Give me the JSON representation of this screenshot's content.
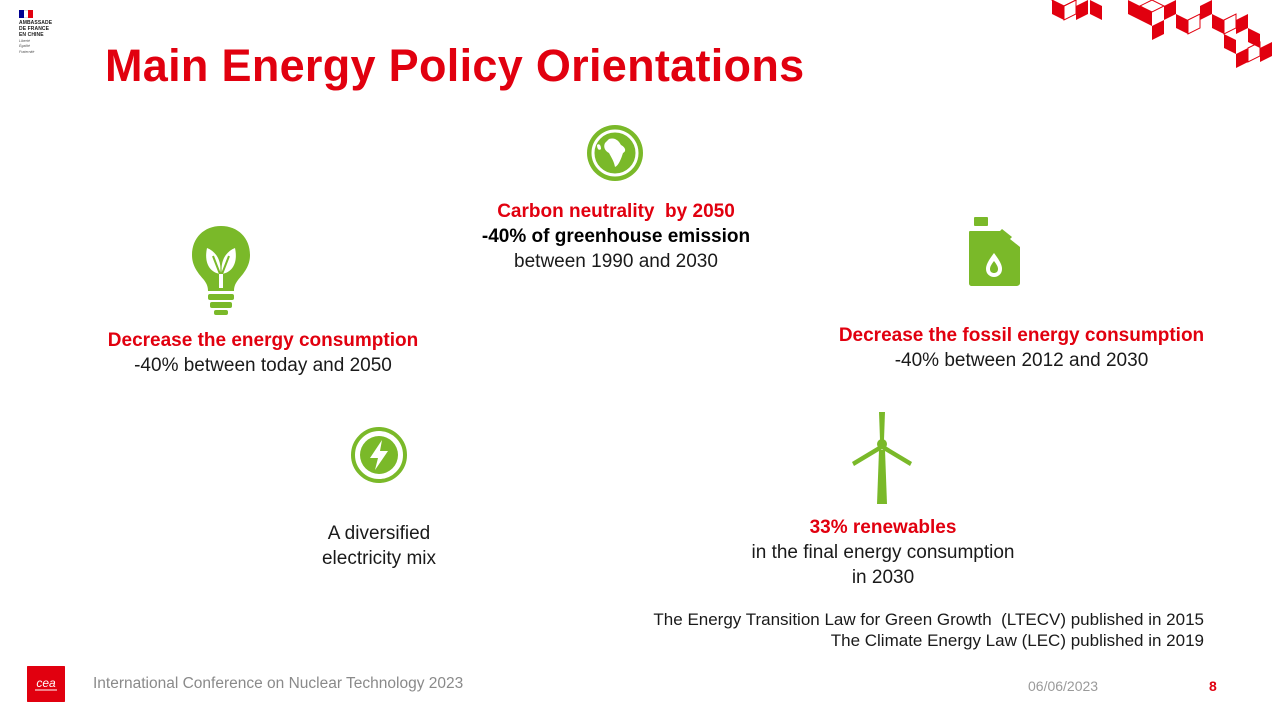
{
  "colors": {
    "accent": "#e1000f",
    "icon_green": "#7ab929"
  },
  "embassy": {
    "lines": [
      "AMBASSADE",
      "DE FRANCE",
      "EN CHINE"
    ],
    "motto": [
      "Liberté",
      "Égalité",
      "Fraternité"
    ]
  },
  "title": "Main Energy Policy Orientations",
  "carbon": {
    "heading": "Carbon neutrality  by 2050",
    "line1": "-40% of greenhouse emission",
    "line2": "between 1990 and 2030"
  },
  "energy": {
    "heading": "Decrease the energy consumption",
    "line1": "-40% between today and 2050"
  },
  "fossil": {
    "heading": "Decrease the fossil energy consumption",
    "line1": "-40% between 2012 and 2030"
  },
  "mix": {
    "line1": "A diversified",
    "line2": "electricity mix"
  },
  "renewables": {
    "heading": "33% renewables",
    "line1": "in the final energy consumption",
    "line2": "in 2030"
  },
  "laws": {
    "line1": "The Energy Transition Law for Green Growth  (LTECV) published in 2015",
    "line2": "The Climate Energy Law (LEC) published in 2019"
  },
  "icons": {
    "globe": "globe-icon",
    "bulb": "lightbulb-leaf-icon",
    "jerrycan": "fuel-can-icon",
    "bolt": "lightning-icon",
    "turbine": "wind-turbine-icon",
    "cea": "cea-logo"
  },
  "footer": {
    "logo": "cea",
    "conference": "International Conference on Nuclear Technology 2023",
    "date": "06/06/2023",
    "page": "8"
  }
}
